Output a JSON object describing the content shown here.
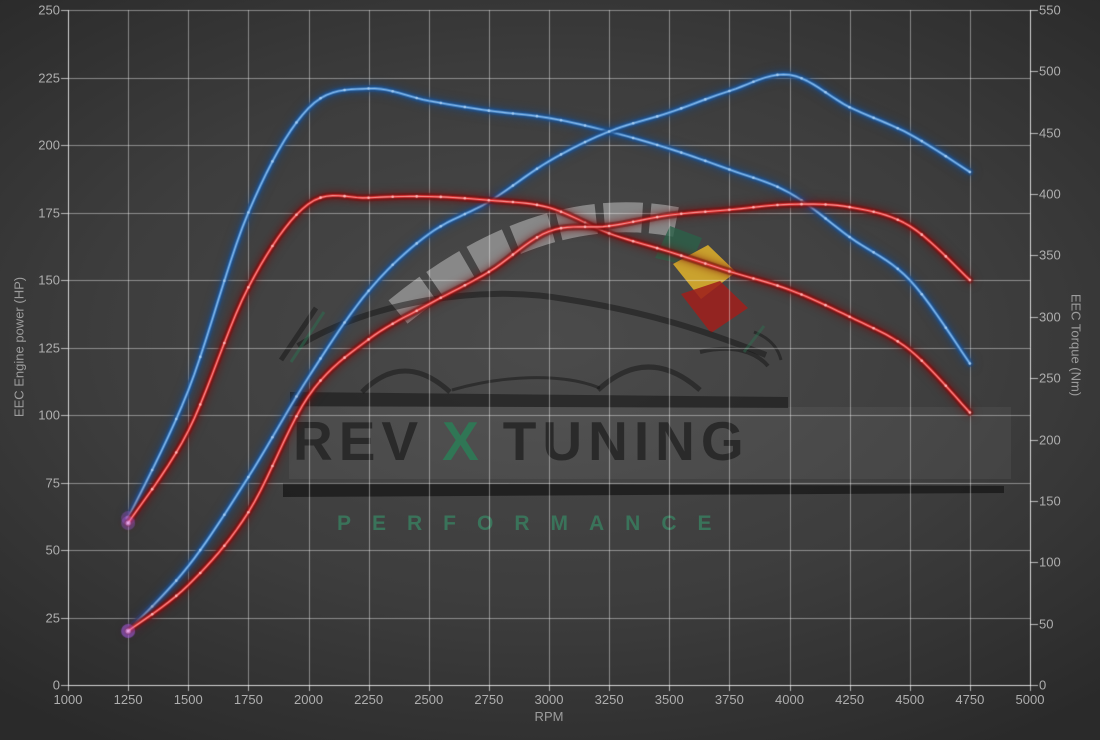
{
  "chart_data": {
    "type": "line",
    "title": "",
    "xlabel": "RPM",
    "x_axis": {
      "min": 1000,
      "max": 5000,
      "tick_step": 250
    },
    "left_axis": {
      "label": "EEC Engine power (HP)",
      "min": 0,
      "max": 250,
      "tick_step": 25
    },
    "right_axis": {
      "label": "EEC Torque (Nm)",
      "min": 0,
      "max": 550,
      "tick_step": 50
    },
    "grid": true,
    "legend_position": "none",
    "x": [
      1250,
      1500,
      1750,
      2000,
      2250,
      2500,
      2750,
      3000,
      3250,
      3500,
      3750,
      4000,
      4250,
      4500,
      4750
    ],
    "series": [
      {
        "name": "tuned-torque-nm",
        "axis": "right",
        "color_key": "blue",
        "values": [
          136,
          240,
          385,
          470,
          486,
          476,
          468,
          462,
          451,
          437,
          420,
          401,
          365,
          330,
          262
        ]
      },
      {
        "name": "tuned-power-hp",
        "axis": "left",
        "color_key": "blue",
        "values": [
          20,
          44,
          77,
          114,
          146,
          167,
          179,
          194,
          205,
          212,
          220,
          226,
          214,
          204,
          190
        ]
      },
      {
        "name": "stock-torque-nm",
        "axis": "right",
        "color_key": "red",
        "values": [
          132,
          207,
          324,
          392,
          397,
          398,
          395,
          389,
          368,
          353,
          337,
          322,
          300,
          273,
          222
        ]
      },
      {
        "name": "stock-power-hp",
        "axis": "left",
        "color_key": "red",
        "values": [
          20,
          37,
          64,
          107,
          128,
          141,
          153,
          168,
          170,
          174,
          176,
          178,
          177,
          170,
          150
        ]
      }
    ]
  },
  "colors": {
    "blue": {
      "glow": "#1d4f8a",
      "core": "#3f86cf",
      "light": "#a6cdf2"
    },
    "red": {
      "glow": "#7a1010",
      "core": "#e02626",
      "light": "#ffb9b9"
    },
    "grid": "rgba(255,255,255,0.42)",
    "axis": "rgba(255,255,255,0.65)",
    "start_glow": "rgba(187,102,255,0.30)"
  },
  "watermark": {
    "brand_rev": "REV",
    "brand_x": "X",
    "brand_tuning": "TUNING",
    "subtitle": "PERFORMANCE"
  }
}
